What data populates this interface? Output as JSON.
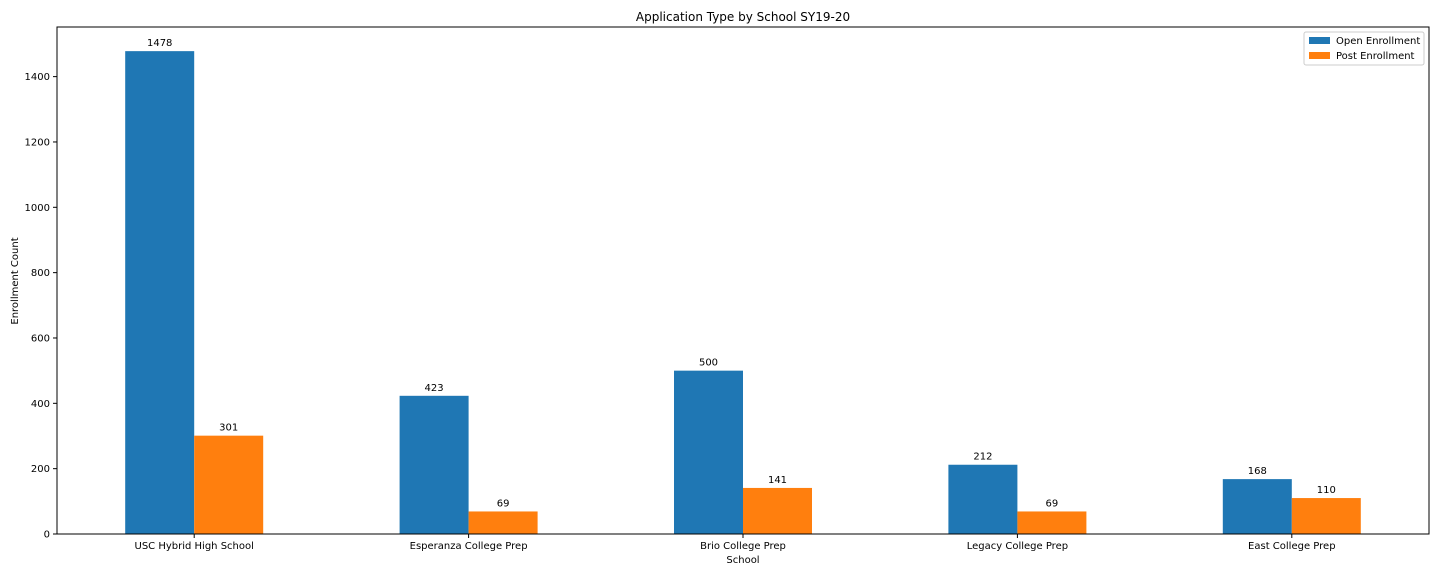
{
  "chart_data": {
    "type": "bar",
    "title": "Application Type by School SY19-20",
    "xlabel": "School",
    "ylabel": "Enrollment Count",
    "categories": [
      "USC Hybrid High School",
      "Esperanza College Prep",
      "Brio College Prep",
      "Legacy College Prep",
      "East College Prep"
    ],
    "series": [
      {
        "name": "Open Enrollment",
        "color": "#1f77b4",
        "values": [
          1478,
          423,
          500,
          212,
          168
        ]
      },
      {
        "name": "Post Enrollment",
        "color": "#ff7f0e",
        "values": [
          301,
          69,
          141,
          69,
          110
        ]
      }
    ],
    "ylim": [
      0,
      1478
    ],
    "yticks": [
      0,
      200,
      400,
      600,
      800,
      1000,
      1200,
      1400
    ],
    "grid": false,
    "legend": "top-right"
  }
}
